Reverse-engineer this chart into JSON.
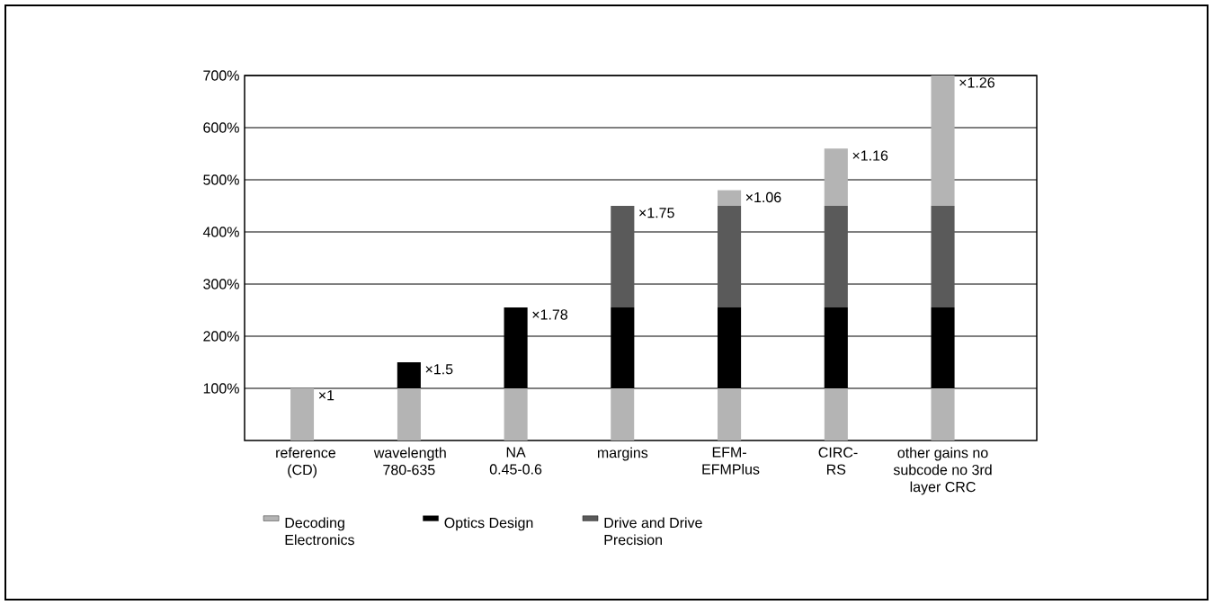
{
  "chart_data": {
    "type": "bar",
    "stacked": true,
    "categories": [
      "reference (CD)",
      "wavelength 780-635",
      "NA 0.45-0.6",
      "margins",
      "EFM-EFMPlus",
      "CIRC-RS",
      "other gains no subcode no 3rd layer CRC"
    ],
    "series": [
      {
        "name": "Decoding Electronics",
        "color": "#b4b4b4",
        "values": [
          100,
          100,
          100,
          100,
          100,
          100,
          100
        ]
      },
      {
        "name": "Optics Design",
        "color": "#000000",
        "values": [
          null,
          50,
          155,
          155,
          155,
          155,
          155
        ]
      },
      {
        "name": "Drive and Drive Precision",
        "color": "#5a5a5a",
        "values": [
          null,
          null,
          null,
          195,
          195,
          195,
          195
        ]
      },
      {
        "color": "#b4b4b4",
        "values": [
          null,
          null,
          null,
          null,
          30,
          110,
          250
        ]
      }
    ],
    "ylim": [
      0,
      700
    ],
    "yticks": [
      {
        "value": 100,
        "label": "100%"
      },
      {
        "value": 200,
        "label": "200%"
      },
      {
        "value": 300,
        "label": "300%"
      },
      {
        "value": 400,
        "label": "400%"
      },
      {
        "value": 500,
        "label": "500%"
      },
      {
        "value": 600,
        "label": "600%"
      },
      {
        "value": 700,
        "label": "700%"
      }
    ],
    "grid": "y",
    "legend": "bottom",
    "annotations": [
      {
        "text": "×1",
        "x": "reference (CD)",
        "y": 100
      },
      {
        "text": "×1.5",
        "x": "wavelength 780-635",
        "y": 150
      },
      {
        "text": "×1.78",
        "x": "NA 0.45-0.6",
        "y": 255
      },
      {
        "text": "×1.75",
        "x": "margins",
        "y": 450
      },
      {
        "text": "×1.06",
        "x": "EFM-EFMPlus",
        "y": 480
      },
      {
        "text": "×1.16",
        "x": "CIRC-RS",
        "y": 560
      },
      {
        "text": "×1.26",
        "x": "other gains no subcode no 3rd layer CRC",
        "y": 700
      }
    ]
  }
}
